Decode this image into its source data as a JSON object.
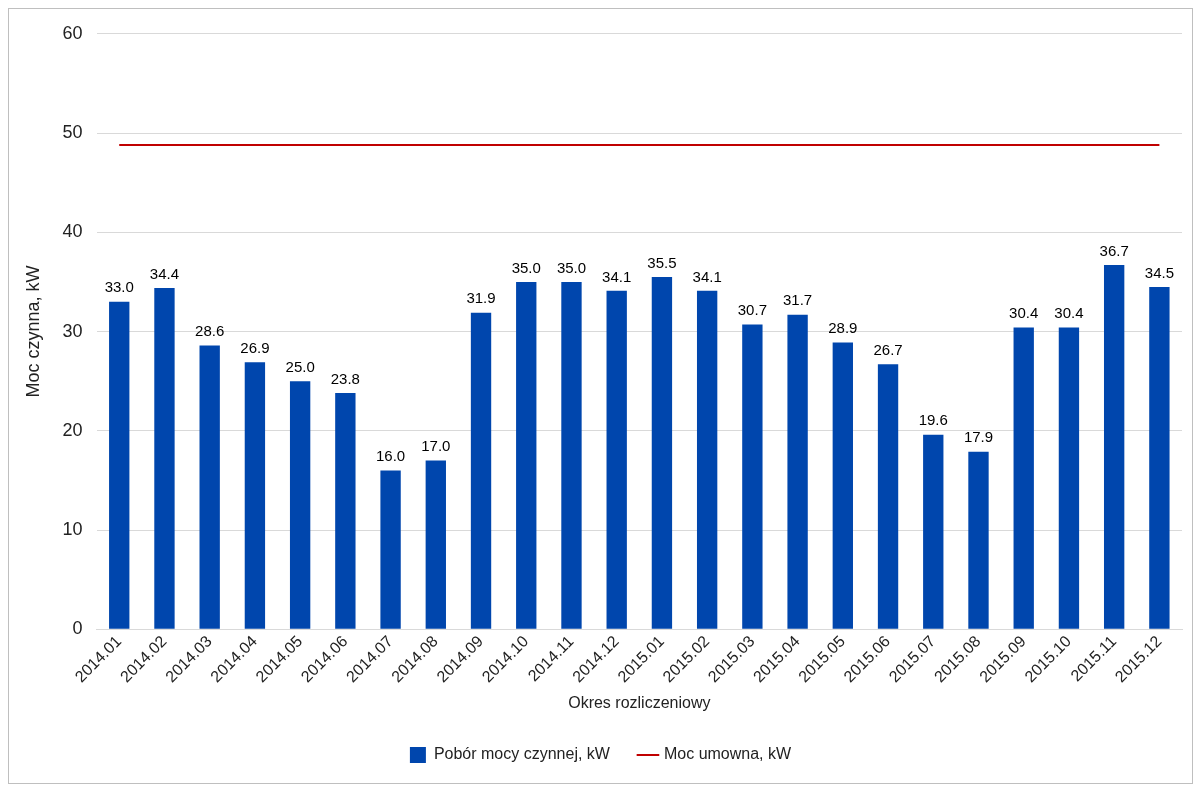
{
  "chart_data": {
    "type": "bar",
    "xlabel": "Okres rozliczeniowy",
    "ylabel": "Moc czynna, kW",
    "categories": [
      "2014.01",
      "2014.02",
      "2014.03",
      "2014.04",
      "2014.05",
      "2014.06",
      "2014.07",
      "2014.08",
      "2014.09",
      "2014.10",
      "2014.11",
      "2014.12",
      "2015.01",
      "2015.02",
      "2015.03",
      "2015.04",
      "2015.05",
      "2015.06",
      "2015.07",
      "2015.08",
      "2015.09",
      "2015.10",
      "2015.11",
      "2015.12"
    ],
    "series": [
      {
        "name": "Pobór mocy czynnej, kW",
        "color": "#0046ad",
        "values": [
          33.0,
          34.4,
          28.6,
          26.9,
          25.0,
          23.8,
          16.0,
          17.0,
          31.9,
          35.0,
          35.0,
          34.1,
          35.5,
          34.1,
          30.7,
          31.7,
          28.9,
          26.7,
          19.6,
          17.9,
          30.4,
          30.4,
          36.7,
          34.5
        ],
        "value_labels": [
          "33.0",
          "34.4",
          "28.6",
          "26.9",
          "25.0",
          "23.8",
          "16.0",
          "17.0",
          "31.9",
          "35.0",
          "35.0",
          "34.1",
          "35.5",
          "34.1",
          "30.7",
          "31.7",
          "28.9",
          "26.7",
          "19.6",
          "17.9",
          "30.4",
          "30.4",
          "36.7",
          "34.5"
        ]
      },
      {
        "name": "Moc umowna, kW",
        "type": "line",
        "color": "#c00000",
        "values": [
          48.8,
          48.8,
          48.8,
          48.8,
          48.8,
          48.8,
          48.8,
          48.8,
          48.8,
          48.8,
          48.8,
          48.8,
          48.8,
          48.8,
          48.8,
          48.8,
          48.8,
          48.8,
          48.8,
          48.8,
          48.8,
          48.8,
          48.8,
          48.8
        ]
      }
    ],
    "ylim": [
      0,
      60
    ],
    "yticks": [
      0,
      10,
      20,
      30,
      40,
      50,
      60
    ],
    "grid": "y",
    "legend": "bottom",
    "marker": "none"
  }
}
